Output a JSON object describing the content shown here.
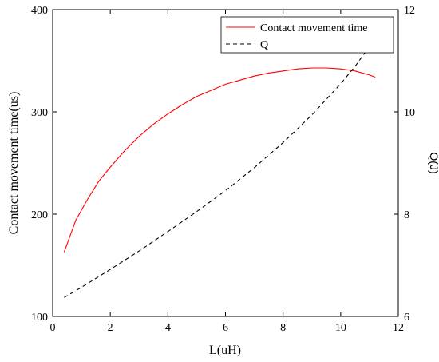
{
  "chart_data": {
    "type": "line",
    "xlabel": "L(uH)",
    "ylabel": "Contact movement time(us)",
    "ylabel_right": "Q(J)",
    "xlim": [
      0,
      12
    ],
    "ylim": [
      100,
      400
    ],
    "ylim_right": [
      6,
      12
    ],
    "xticks": [
      0,
      2,
      4,
      6,
      8,
      10,
      12
    ],
    "yticks": [
      100,
      200,
      300,
      400
    ],
    "yticks_right": [
      6,
      8,
      10,
      12
    ],
    "grid": false,
    "legend_position": "top-right",
    "series": [
      {
        "name": "Contact movement time",
        "axis": "left",
        "color": "#ff0000",
        "style": "solid",
        "x": [
          0.4,
          0.8,
          1.2,
          1.6,
          2.0,
          2.5,
          3.0,
          3.5,
          4.0,
          4.5,
          5.0,
          5.5,
          6.0,
          6.5,
          7.0,
          7.5,
          8.0,
          8.5,
          9.0,
          9.5,
          10.0,
          10.5,
          11.0,
          11.2
        ],
        "y": [
          163,
          194,
          214,
          232,
          246,
          262,
          276,
          288,
          298,
          307,
          315,
          321,
          327,
          331,
          335,
          338,
          340,
          342,
          343,
          343,
          342,
          340,
          336,
          334
        ]
      },
      {
        "name": "Q",
        "axis": "right",
        "color": "#000000",
        "style": "dashed",
        "x": [
          0.4,
          1.0,
          2.0,
          3.0,
          4.0,
          5.0,
          6.0,
          7.0,
          8.0,
          9.0,
          10.0,
          10.5,
          11.0,
          11.2
        ],
        "y": [
          6.37,
          6.57,
          6.92,
          7.28,
          7.66,
          8.05,
          8.46,
          8.91,
          9.4,
          9.94,
          10.55,
          10.89,
          11.28,
          11.42
        ]
      }
    ]
  }
}
